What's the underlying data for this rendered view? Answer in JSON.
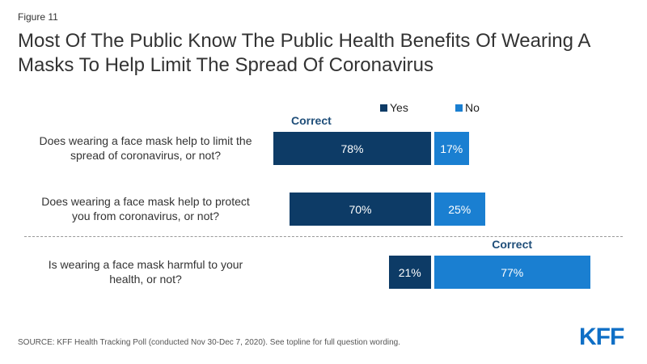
{
  "figure_label": "Figure 11",
  "title": "Most Of The Public Know The Public Health Benefits Of Wearing A Masks To Help Limit The Spread Of Coronavirus",
  "correct_label": "Correct",
  "source": "SOURCE: KFF Health Tracking Poll (conducted Nov 30-Dec 7, 2020). See topline for full question wording.",
  "logo": "KFF",
  "colors": {
    "yes": "#0d3b66",
    "no": "#1a7fd1"
  },
  "chart_data": {
    "type": "bar",
    "orientation": "horizontal-diverging",
    "categories": [
      "Does wearing a face mask help to limit the spread of coronavirus, or not?",
      "Does wearing a face mask help to protect you from coronavirus, or not?",
      "Is wearing a face mask harmful to your health, or not?"
    ],
    "series": [
      {
        "name": "Yes",
        "values": [
          78,
          70,
          21
        ],
        "labels": [
          "78%",
          "70%",
          "21%"
        ]
      },
      {
        "name": "No",
        "values": [
          17,
          25,
          77
        ],
        "labels": [
          "17%",
          "25%",
          "77%"
        ]
      }
    ],
    "correct": [
      "Yes",
      "Yes",
      "No"
    ],
    "legend_position": "top",
    "grid": false
  }
}
